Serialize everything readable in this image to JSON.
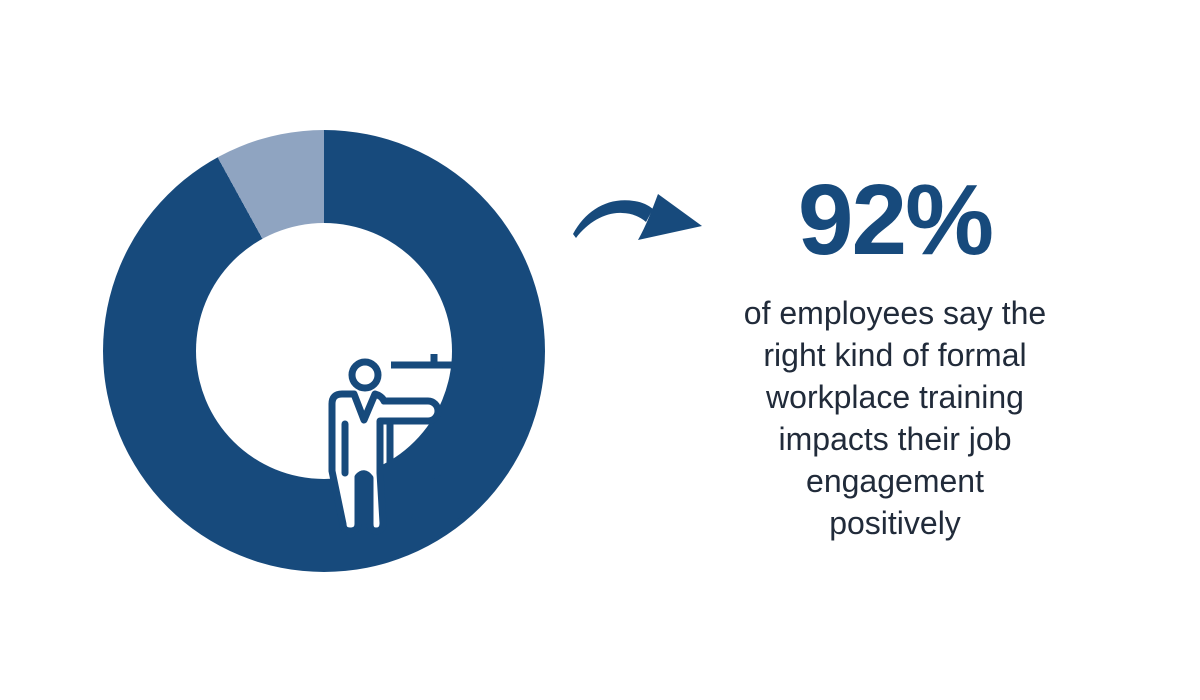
{
  "colors": {
    "primary": "#174a7c",
    "muted_slice": "#8fa4c1",
    "text_dark": "#212b3a",
    "background": "#ffffff"
  },
  "chart_data": {
    "type": "pie",
    "subtype": "donut",
    "labels": [
      "employees who say training impacts engagement positively",
      "remainder"
    ],
    "values": [
      92,
      8
    ],
    "slice_colors": [
      "#174a7c",
      "#8fa4c1"
    ],
    "start_angle_deg": 0,
    "direction": "clockwise",
    "center_icon": "presenter-at-whiteboard",
    "legend": "none",
    "title": ""
  },
  "stat": {
    "value": "92%",
    "description": "of employees say the right kind of formal workplace training impacts their job engagement positively",
    "description_lines": [
      "of employees say the",
      "right kind of formal",
      "workplace training",
      "impacts their job",
      "engagement",
      "positively"
    ]
  },
  "icons": {
    "arrow": "curved-arrow-right",
    "center": "presenter-at-whiteboard"
  }
}
